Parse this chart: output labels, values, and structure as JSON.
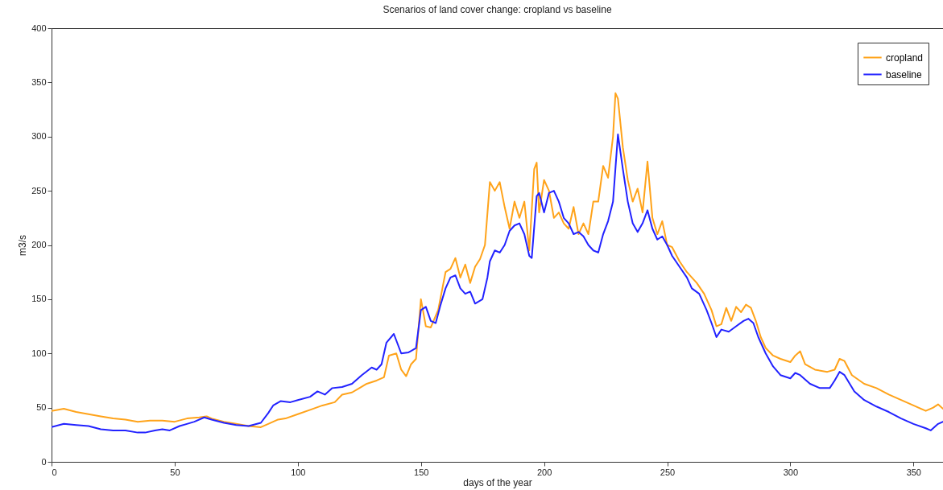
{
  "chart_data": {
    "type": "line",
    "title": "Scenarios of land cover change: cropland vs baseline",
    "xlabel": "days of the year",
    "ylabel": "m3/s",
    "xlim": [
      0,
      362
    ],
    "xticks": [
      0,
      50,
      100,
      150,
      200,
      250,
      300,
      350
    ],
    "ylim": [
      0,
      400
    ],
    "yticks": [
      0,
      50,
      100,
      150,
      200,
      250,
      300,
      350,
      400
    ],
    "grid": false,
    "legend": "top right",
    "line_style": "solid",
    "marker": "none",
    "series": [
      {
        "name": "cropland",
        "color": "#ffa31a",
        "x": [
          0,
          5,
          10,
          15,
          20,
          25,
          30,
          35,
          40,
          45,
          50,
          55,
          60,
          63,
          65,
          70,
          75,
          80,
          85,
          88,
          92,
          95,
          100,
          105,
          110,
          115,
          118,
          122,
          125,
          128,
          132,
          135,
          137,
          140,
          142,
          144,
          146,
          148,
          150,
          152,
          154,
          157,
          160,
          162,
          164,
          166,
          168,
          170,
          172,
          174,
          176,
          178,
          180,
          182,
          184,
          186,
          188,
          190,
          192,
          194,
          196,
          197,
          198,
          200,
          202,
          204,
          206,
          208,
          210,
          212,
          214,
          216,
          218,
          220,
          222,
          224,
          226,
          228,
          229,
          230,
          232,
          234,
          236,
          238,
          240,
          242,
          244,
          246,
          248,
          250,
          252,
          255,
          258,
          260,
          262,
          265,
          268,
          270,
          272,
          274,
          276,
          278,
          280,
          282,
          284,
          286,
          288,
          290,
          293,
          296,
          300,
          302,
          304,
          306,
          310,
          315,
          318,
          320,
          322,
          325,
          330,
          335,
          340,
          345,
          350,
          355,
          358,
          360,
          362
        ],
        "values": [
          47,
          49,
          46,
          44,
          42,
          40,
          39,
          37,
          38,
          38,
          37,
          40,
          41,
          42,
          40,
          37,
          35,
          33,
          32,
          35,
          39,
          40,
          44,
          48,
          52,
          55,
          62,
          64,
          68,
          72,
          75,
          78,
          98,
          100,
          85,
          79,
          90,
          95,
          150,
          125,
          124,
          140,
          175,
          178,
          188,
          170,
          182,
          165,
          180,
          187,
          200,
          258,
          250,
          258,
          235,
          215,
          240,
          225,
          240,
          195,
          270,
          276,
          230,
          260,
          250,
          225,
          230,
          220,
          215,
          235,
          210,
          220,
          210,
          240,
          240,
          273,
          262,
          300,
          340,
          335,
          290,
          260,
          240,
          252,
          230,
          277,
          225,
          210,
          222,
          200,
          198,
          185,
          175,
          170,
          165,
          155,
          140,
          125,
          127,
          142,
          130,
          143,
          138,
          145,
          142,
          130,
          115,
          105,
          98,
          95,
          92,
          98,
          102,
          90,
          85,
          83,
          85,
          95,
          93,
          80,
          72,
          68,
          62,
          57,
          52,
          47,
          50,
          53,
          49
        ]
      },
      {
        "name": "baseline",
        "color": "#2222ff",
        "x": [
          0,
          5,
          10,
          15,
          20,
          25,
          30,
          35,
          38,
          42,
          45,
          48,
          52,
          55,
          58,
          62,
          65,
          70,
          75,
          80,
          85,
          88,
          90,
          93,
          97,
          100,
          105,
          108,
          111,
          114,
          118,
          122,
          126,
          130,
          132,
          134,
          136,
          139,
          142,
          145,
          148,
          150,
          152,
          154,
          156,
          158,
          160,
          162,
          164,
          166,
          168,
          170,
          172,
          175,
          177,
          178,
          180,
          182,
          184,
          186,
          188,
          190,
          192,
          194,
          195,
          197,
          198,
          200,
          202,
          204,
          206,
          208,
          210,
          212,
          214,
          216,
          218,
          220,
          222,
          224,
          226,
          228,
          230,
          232,
          234,
          236,
          238,
          240,
          242,
          244,
          246,
          248,
          250,
          252,
          255,
          258,
          260,
          263,
          266,
          268,
          270,
          272,
          275,
          278,
          281,
          283,
          285,
          287,
          290,
          293,
          296,
          300,
          302,
          304,
          308,
          312,
          316,
          318,
          320,
          322,
          326,
          330,
          335,
          340,
          345,
          350,
          355,
          357,
          360,
          362
        ],
        "values": [
          32,
          35,
          34,
          33,
          30,
          29,
          29,
          27,
          27,
          29,
          30,
          29,
          33,
          35,
          37,
          41,
          39,
          36,
          34,
          33,
          36,
          45,
          52,
          56,
          55,
          57,
          60,
          65,
          62,
          68,
          69,
          72,
          80,
          87,
          85,
          90,
          110,
          118,
          100,
          101,
          105,
          140,
          143,
          130,
          128,
          145,
          160,
          170,
          172,
          160,
          155,
          157,
          146,
          150,
          170,
          185,
          195,
          193,
          200,
          213,
          218,
          220,
          210,
          190,
          188,
          245,
          248,
          230,
          248,
          250,
          240,
          225,
          220,
          210,
          212,
          208,
          200,
          195,
          193,
          210,
          222,
          240,
          302,
          270,
          240,
          220,
          212,
          220,
          232,
          215,
          205,
          208,
          200,
          190,
          180,
          170,
          160,
          155,
          140,
          128,
          115,
          122,
          120,
          125,
          130,
          132,
          128,
          115,
          100,
          88,
          80,
          77,
          82,
          80,
          72,
          68,
          68,
          75,
          83,
          80,
          65,
          57,
          51,
          46,
          40,
          35,
          31,
          29,
          35,
          37
        ]
      }
    ]
  }
}
